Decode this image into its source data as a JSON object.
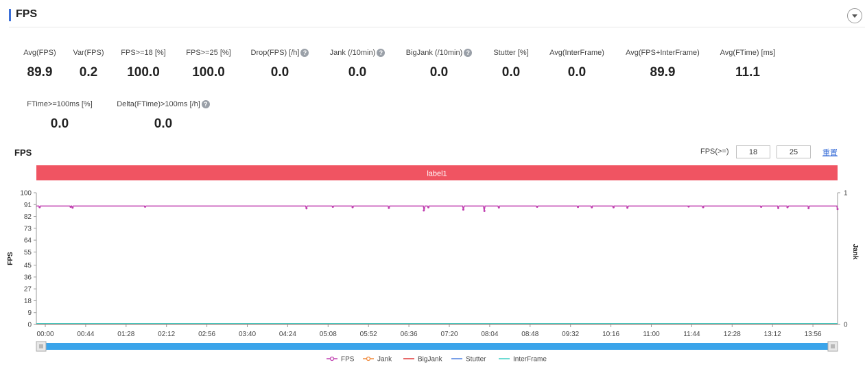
{
  "header": {
    "title": "FPS"
  },
  "stats": [
    {
      "label": "Avg(FPS)",
      "value": "89.9",
      "help": false
    },
    {
      "label": "Var(FPS)",
      "value": "0.2",
      "help": false
    },
    {
      "label": "FPS>=18 [%]",
      "value": "100.0",
      "help": false
    },
    {
      "label": "FPS>=25 [%]",
      "value": "100.0",
      "help": false
    },
    {
      "label": "Drop(FPS) [/h]",
      "value": "0.0",
      "help": true
    },
    {
      "label": "Jank (/10min)",
      "value": "0.0",
      "help": true
    },
    {
      "label": "BigJank (/10min)",
      "value": "0.0",
      "help": true
    },
    {
      "label": "Stutter [%]",
      "value": "0.0",
      "help": false
    },
    {
      "label": "Avg(InterFrame)",
      "value": "0.0",
      "help": false
    },
    {
      "label": "Avg(FPS+InterFrame)",
      "value": "89.9",
      "help": false
    },
    {
      "label": "Avg(FTime) [ms]",
      "value": "11.1",
      "help": false
    },
    {
      "label": "FTime>=100ms [%]",
      "value": "0.0",
      "help": false
    },
    {
      "label": "Delta(FTime)>100ms [/h]",
      "value": "0.0",
      "help": true
    }
  ],
  "chart_section": {
    "title": "FPS",
    "filter_label": "FPS(>=)",
    "filter_values": [
      "18",
      "25"
    ],
    "reset_label": "重置"
  },
  "chart_data": {
    "type": "line",
    "band_label": "label1",
    "ylabel": "FPS",
    "y2label": "Jank",
    "ylim": [
      0,
      100
    ],
    "yticks": [
      "0",
      "9",
      "18",
      "27",
      "36",
      "45",
      "55",
      "64",
      "73",
      "82",
      "91",
      "100"
    ],
    "y2lim": [
      0,
      1
    ],
    "y2ticks": [
      "0",
      "1"
    ],
    "xlim_seconds": [
      0,
      1000
    ],
    "xticks": [
      "00:00",
      "00:44",
      "01:28",
      "02:12",
      "02:56",
      "03:40",
      "04:24",
      "05:08",
      "05:52",
      "06:36",
      "07:20",
      "08:04",
      "08:48",
      "09:32",
      "10:16",
      "11:00",
      "11:44",
      "12:28",
      "13:12",
      "13:56"
    ],
    "series": [
      {
        "name": "FPS",
        "color": "#c040b0",
        "baseline": 89.9,
        "dips": [
          [
            5,
            89.0
          ],
          [
            52,
            89.3
          ],
          [
            55,
            88.7
          ],
          [
            165,
            89.4
          ],
          [
            410,
            88.2
          ],
          [
            450,
            89.3
          ],
          [
            480,
            89.0
          ],
          [
            535,
            88.5
          ],
          [
            588,
            86.5
          ],
          [
            595,
            88.9
          ],
          [
            648,
            87.2
          ],
          [
            680,
            86.2
          ],
          [
            702,
            88.8
          ],
          [
            760,
            89.3
          ],
          [
            822,
            89.2
          ],
          [
            843,
            88.9
          ],
          [
            876,
            88.9
          ],
          [
            897,
            88.6
          ],
          [
            990,
            89.5
          ],
          [
            1012,
            89.0
          ],
          [
            1100,
            89.3
          ],
          [
            1126,
            88.4
          ],
          [
            1140,
            89.0
          ],
          [
            1172,
            88.3
          ],
          [
            1216,
            87.6
          ]
        ]
      },
      {
        "name": "Jank",
        "color": "#f08a3c",
        "values": [
          0,
          0
        ]
      },
      {
        "name": "BigJank",
        "color": "#e03838",
        "values": [
          0,
          0
        ]
      },
      {
        "name": "Stutter",
        "color": "#4a7fe0",
        "values": [
          0,
          0
        ]
      },
      {
        "name": "InterFrame",
        "color": "#3ccfc4",
        "values": [
          0,
          0
        ]
      }
    ],
    "legend_position": "bottom-center",
    "band_color": "#f05462",
    "slider_color": "#3aa4ea"
  }
}
